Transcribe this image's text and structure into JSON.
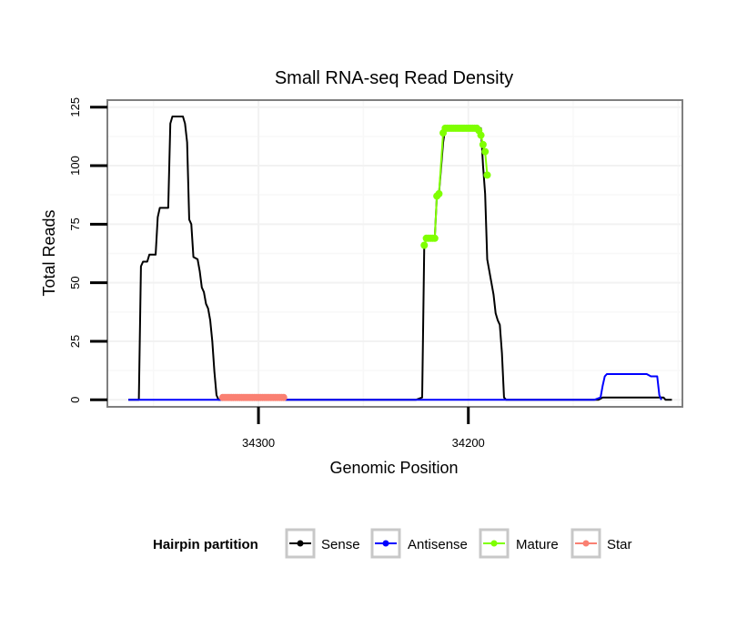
{
  "chart_data": {
    "type": "line",
    "title": "Small RNA-seq Read Density",
    "xlabel": "Genomic Position",
    "ylabel": "Total Reads",
    "xlim": [
      34372,
      34098
    ],
    "ylim": [
      -3,
      128
    ],
    "x_reversed": true,
    "x_ticks": [
      34300,
      34200
    ],
    "x_tick_labels": [
      "34300",
      "34200"
    ],
    "y_ticks": [
      0,
      25,
      50,
      75,
      100,
      125
    ],
    "y_tick_labels": [
      "0",
      "25",
      "50",
      "75",
      "100",
      "125"
    ],
    "grid": true,
    "legend": {
      "title": "Hairpin partition",
      "position": "bottom",
      "entries": [
        {
          "label": "Sense",
          "color": "#000000"
        },
        {
          "label": "Antisense",
          "color": "#0000ff"
        },
        {
          "label": "Mature",
          "color": "#7fff00"
        },
        {
          "label": "Star",
          "color": "#fa8072"
        }
      ]
    },
    "series": [
      {
        "name": "Sense",
        "color": "#000000",
        "points": [
          [
            34362,
            0
          ],
          [
            34357,
            0
          ],
          [
            34356,
            57
          ],
          [
            34355,
            59
          ],
          [
            34353,
            59
          ],
          [
            34352,
            62
          ],
          [
            34349,
            62
          ],
          [
            34348,
            78
          ],
          [
            34347,
            82
          ],
          [
            34343,
            82
          ],
          [
            34342,
            118
          ],
          [
            34341,
            121
          ],
          [
            34336,
            121
          ],
          [
            34335,
            118
          ],
          [
            34334,
            110
          ],
          [
            34333,
            77
          ],
          [
            34332,
            75
          ],
          [
            34331,
            61
          ],
          [
            34329,
            60
          ],
          [
            34328,
            55
          ],
          [
            34327,
            48
          ],
          [
            34326,
            46
          ],
          [
            34325,
            41
          ],
          [
            34324,
            39
          ],
          [
            34323,
            34
          ],
          [
            34322,
            25
          ],
          [
            34321,
            12
          ],
          [
            34320,
            2
          ],
          [
            34319,
            0
          ],
          [
            34225,
            0
          ],
          [
            34222,
            1
          ],
          [
            34221,
            66
          ],
          [
            34220,
            69
          ],
          [
            34216,
            69
          ],
          [
            34215,
            87
          ],
          [
            34214,
            88
          ],
          [
            34212,
            110
          ],
          [
            34211,
            116
          ],
          [
            34194,
            116
          ],
          [
            34193,
            100
          ],
          [
            34192,
            88
          ],
          [
            34191,
            60
          ],
          [
            34189,
            50
          ],
          [
            34188,
            45
          ],
          [
            34187,
            37
          ],
          [
            34186,
            34
          ],
          [
            34185,
            32
          ],
          [
            34184,
            20
          ],
          [
            34183,
            1
          ],
          [
            34182,
            0
          ],
          [
            34140,
            0
          ],
          [
            34138,
            0
          ],
          [
            34136,
            1
          ],
          [
            34107,
            1
          ],
          [
            34106,
            0
          ],
          [
            34103,
            0
          ]
        ]
      },
      {
        "name": "Antisense",
        "color": "#0000ff",
        "points": [
          [
            34362,
            0
          ],
          [
            34140,
            0
          ],
          [
            34137,
            1
          ],
          [
            34136,
            6
          ],
          [
            34135,
            10
          ],
          [
            34134,
            11
          ],
          [
            34116,
            11
          ],
          [
            34115,
            11
          ],
          [
            34113,
            10
          ],
          [
            34110,
            10
          ],
          [
            34109,
            2
          ],
          [
            34108,
            0
          ]
        ]
      },
      {
        "name": "Mature",
        "color": "#7fff00",
        "points": [
          [
            34221,
            66
          ],
          [
            34220,
            69
          ],
          [
            34219,
            69
          ],
          [
            34218,
            69
          ],
          [
            34217,
            69
          ],
          [
            34216,
            69
          ],
          [
            34215,
            87
          ],
          [
            34214,
            88
          ],
          [
            34212,
            114
          ],
          [
            34211,
            116
          ],
          [
            34210,
            116
          ],
          [
            34209,
            116
          ],
          [
            34208,
            116
          ],
          [
            34207,
            116
          ],
          [
            34206,
            116
          ],
          [
            34205,
            116
          ],
          [
            34204,
            116
          ],
          [
            34203,
            116
          ],
          [
            34202,
            116
          ],
          [
            34201,
            116
          ],
          [
            34200,
            116
          ],
          [
            34199,
            116
          ],
          [
            34198,
            116
          ],
          [
            34197,
            116
          ],
          [
            34196,
            116
          ],
          [
            34195,
            115
          ],
          [
            34194,
            113
          ],
          [
            34193,
            109
          ],
          [
            34192,
            106
          ],
          [
            34191,
            96
          ]
        ]
      },
      {
        "name": "Star",
        "color": "#fa8072",
        "points": [
          [
            34317,
            1
          ],
          [
            34316,
            1
          ],
          [
            34315,
            1
          ],
          [
            34314,
            1
          ],
          [
            34313,
            1
          ],
          [
            34312,
            1
          ],
          [
            34311,
            1
          ],
          [
            34310,
            1
          ],
          [
            34309,
            1
          ],
          [
            34308,
            1
          ],
          [
            34307,
            1
          ],
          [
            34306,
            1
          ],
          [
            34305,
            1
          ],
          [
            34304,
            1
          ],
          [
            34303,
            1
          ],
          [
            34302,
            1
          ],
          [
            34301,
            1
          ],
          [
            34300,
            1
          ],
          [
            34299,
            1
          ],
          [
            34298,
            1
          ],
          [
            34297,
            1
          ],
          [
            34296,
            1
          ],
          [
            34295,
            1
          ],
          [
            34294,
            1
          ],
          [
            34293,
            1
          ],
          [
            34292,
            1
          ],
          [
            34291,
            1
          ],
          [
            34290,
            1
          ],
          [
            34289,
            1
          ],
          [
            34288,
            1
          ]
        ]
      }
    ]
  }
}
